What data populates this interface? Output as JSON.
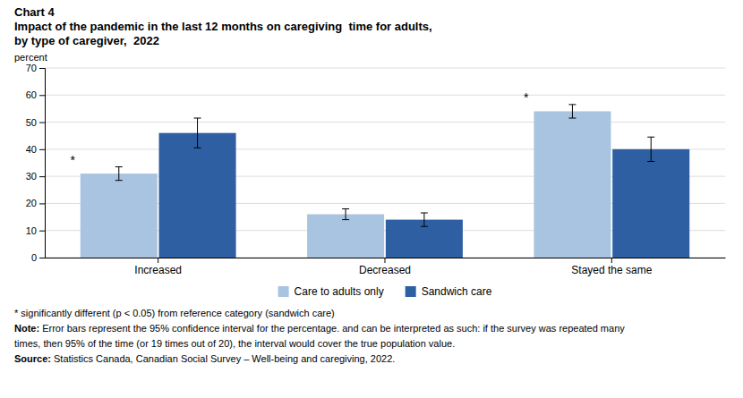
{
  "chart_data": {
    "type": "bar",
    "title": "Chart 4",
    "subtitle": [
      "Impact of the pandemic in the last 12 months on caregiving  time for adults,",
      "by type of caregiver,  2022"
    ],
    "ylabel": "percent",
    "categories": [
      "Increased",
      "Decreased",
      "Stayed the same"
    ],
    "series": [
      {
        "name": "Care to adults only",
        "color": "#a8c4e0",
        "values": [
          31,
          16,
          54
        ],
        "errors": [
          2.5,
          2.0,
          2.5
        ],
        "significance_labels": [
          "*",
          null,
          "*"
        ]
      },
      {
        "name": "Sandwich care",
        "color": "#2e5fa3",
        "values": [
          46,
          14,
          40
        ],
        "errors": [
          5.5,
          2.5,
          4.5
        ],
        "significance_labels": [
          null,
          null,
          null
        ]
      }
    ],
    "ylim": [
      0,
      70
    ],
    "yticks": [
      0,
      10,
      20,
      30,
      40,
      50,
      60,
      70
    ],
    "grid": true,
    "legend": "bottom",
    "notes": [
      "* significantly different (p < 0.05) from reference category (sandwich care)",
      {
        "label": "Note:",
        "text": " Error bars represent the 95% confidence interval for the percentage. and can be interpreted as such: if the survey was repeated many"
      },
      "times, then 95% of the time (or 19 times out of 20), the interval would cover the true population value.",
      {
        "label": "Source:",
        "text": " Statistics Canada, Canadian Social Survey – Well-being and caregiving, 2022."
      }
    ]
  }
}
